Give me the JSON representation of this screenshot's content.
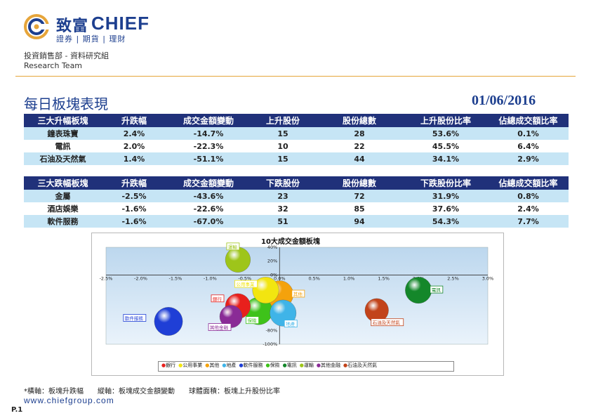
{
  "header": {
    "brand_cn": "致富",
    "brand_en": "CHIEF",
    "brand_sub": "證券 | 期貨 | 理財",
    "dept_cn": "投資銷售部 - 資料研究組",
    "dept_en": "Research Team"
  },
  "page": {
    "title": "每日板塊表現",
    "date": "01/06/2016",
    "number": "P.1"
  },
  "top_table": {
    "headers": [
      "三大升幅板塊",
      "升跌幅",
      "成交金額變動",
      "上升股份",
      "股份總數",
      "上升股份比率",
      "佔總成交額比率"
    ],
    "rows": [
      [
        "鐘表珠寶",
        "2.4%",
        "-14.7%",
        "15",
        "28",
        "53.6%",
        "0.1%"
      ],
      [
        "電訊",
        "2.0%",
        "-22.3%",
        "10",
        "22",
        "45.5%",
        "6.4%"
      ],
      [
        "石油及天然氣",
        "1.4%",
        "-51.1%",
        "15",
        "44",
        "34.1%",
        "2.9%"
      ]
    ]
  },
  "bottom_table": {
    "headers": [
      "三大跌幅板塊",
      "升跌幅",
      "成交金額變動",
      "下跌股份",
      "股份總數",
      "下跌股份比率",
      "佔總成交額比率"
    ],
    "rows": [
      [
        "金屬",
        "-2.5%",
        "-43.6%",
        "23",
        "72",
        "31.9%",
        "0.8%"
      ],
      [
        "酒店娛樂",
        "-1.6%",
        "-22.6%",
        "32",
        "85",
        "37.6%",
        "2.4%"
      ],
      [
        "軟件服務",
        "-1.6%",
        "-67.0%",
        "51",
        "94",
        "54.3%",
        "7.7%"
      ]
    ]
  },
  "chart_data": {
    "type": "scatter",
    "title": "10大成交金額板塊",
    "xlabel": "板塊升跌幅",
    "ylabel": "板塊成交金額變動",
    "size_label": "板塊上升股份比率",
    "x_ticks": [
      "-2.5%",
      "-2.0%",
      "-1.5%",
      "-1.0%",
      "-0.5%",
      "0.0%",
      "0.5%",
      "1.0%",
      "1.5%",
      "2.0%",
      "2.5%",
      "3.0%"
    ],
    "y_ticks": [
      "40%",
      "20%",
      "0%",
      "-20%",
      "-40%",
      "-60%",
      "-80%",
      "-100%"
    ],
    "xlim": [
      -2.5,
      3.0
    ],
    "ylim": [
      -100,
      40
    ],
    "legend_position": "bottom",
    "points": [
      {
        "name": "銀行",
        "x": -0.6,
        "y": -45,
        "size": 40,
        "color": "#e8201c"
      },
      {
        "name": "公用事業",
        "x": -0.2,
        "y": -22,
        "size": 45,
        "color": "#f2e510"
      },
      {
        "name": "其他",
        "x": 0.0,
        "y": -28,
        "size": 50,
        "color": "#f4a20c"
      },
      {
        "name": "地產",
        "x": 0.05,
        "y": -55,
        "size": 45,
        "color": "#3fb4e8"
      },
      {
        "name": "軟件服務",
        "x": -1.6,
        "y": -67,
        "size": 54,
        "color": "#1f3fd6"
      },
      {
        "name": "保險",
        "x": -0.3,
        "y": -52,
        "size": 50,
        "color": "#3ec21a"
      },
      {
        "name": "電訊",
        "x": 2.0,
        "y": -22,
        "size": 45,
        "color": "#14872a"
      },
      {
        "name": "運輸",
        "x": -0.6,
        "y": 22,
        "size": 40,
        "color": "#9ec51a"
      },
      {
        "name": "其他金融",
        "x": -0.7,
        "y": -60,
        "size": 30,
        "color": "#8a2b96"
      },
      {
        "name": "石油及天然氣",
        "x": 1.4,
        "y": -51,
        "size": 34,
        "color": "#c2431a"
      }
    ]
  },
  "footnote": "*橫軸：板塊升跌幅　　縱軸：板塊成交金額變動　　球體面積：板塊上升股份比率",
  "website": "www.chiefgroup.com"
}
